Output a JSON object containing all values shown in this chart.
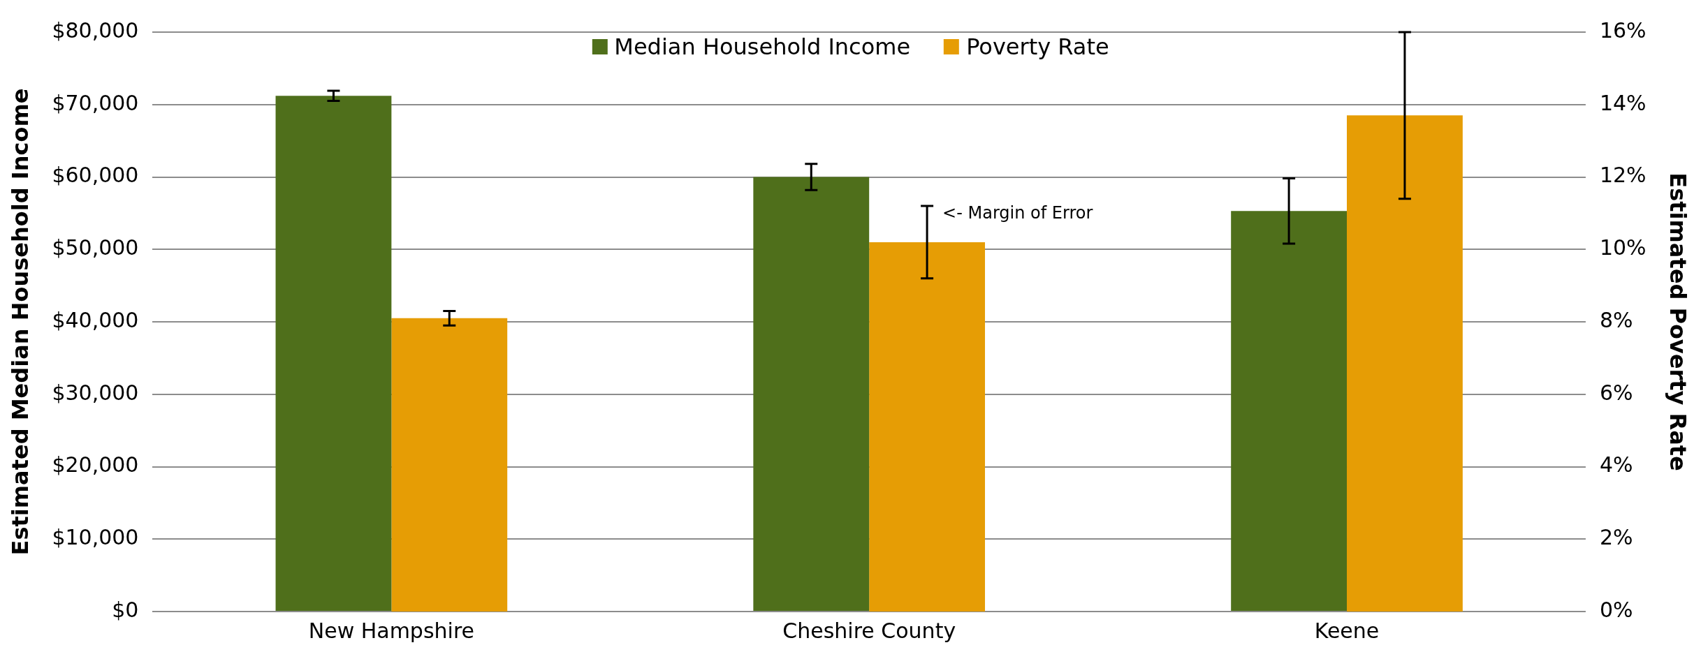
{
  "chart_data": {
    "type": "bar",
    "categories": [
      "New Hampshire",
      "Cheshire County",
      "Keene"
    ],
    "series": [
      {
        "name": "Median Household Income",
        "color": "#4f6f1b",
        "values": [
          71200,
          60000,
          55300
        ],
        "errors": [
          700,
          1800,
          4500
        ]
      },
      {
        "name": "Poverty Rate",
        "color": "#e69d05",
        "values": [
          8.1,
          10.2,
          13.7
        ],
        "errors": [
          0.2,
          1.0,
          2.3
        ],
        "axis": "y2"
      }
    ],
    "ylabel": "Estimated Median Household Income",
    "y2label": "Estimated Poverty Rate",
    "ylim": [
      0,
      80000
    ],
    "yticks": [
      {
        "value": 0,
        "label": "$0"
      },
      {
        "value": 10000,
        "label": "$10,000"
      },
      {
        "value": 20000,
        "label": "$20,000"
      },
      {
        "value": 30000,
        "label": "$30,000"
      },
      {
        "value": 40000,
        "label": "$40,000"
      },
      {
        "value": 50000,
        "label": "$50,000"
      },
      {
        "value": 60000,
        "label": "$60,000"
      },
      {
        "value": 70000,
        "label": "$70,000"
      },
      {
        "value": 80000,
        "label": "$80,000"
      }
    ],
    "y2lim": [
      0,
      16
    ],
    "y2ticks": [
      {
        "value": 0,
        "label": "0%"
      },
      {
        "value": 2,
        "label": "2%"
      },
      {
        "value": 4,
        "label": "4%"
      },
      {
        "value": 6,
        "label": "6%"
      },
      {
        "value": 8,
        "label": "8%"
      },
      {
        "value": 10,
        "label": "10%"
      },
      {
        "value": 12,
        "label": "12%"
      },
      {
        "value": 14,
        "label": "14%"
      },
      {
        "value": 16,
        "label": "16%"
      }
    ],
    "annotations": [
      "<- Margin of Error"
    ],
    "grid": "y",
    "legend": "top"
  }
}
